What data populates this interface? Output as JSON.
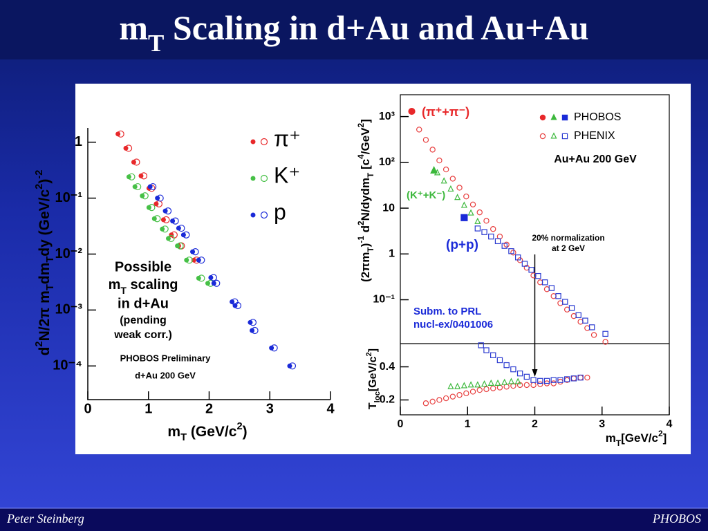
{
  "slide": {
    "title": [
      {
        "t": "m"
      },
      {
        "sub": "T"
      },
      {
        "t": " Scaling in d+Au and Au+Au"
      }
    ],
    "footer_left": "Peter Steinberg",
    "footer_right": "PHOBOS"
  },
  "chart_data": [
    {
      "type": "scatter",
      "log_y": true,
      "xlim": [
        0,
        4
      ],
      "ylim": [
        2.5e-05,
        1.8
      ],
      "xticks": [
        0,
        1,
        2,
        3,
        4
      ],
      "yticks": [
        1,
        {
          "value": 0.1,
          "label": "10⁻¹"
        },
        {
          "value": 0.01,
          "label": "10⁻²"
        },
        {
          "value": 0.001,
          "label": "10⁻³"
        },
        {
          "value": 0.0001,
          "label": "10⁻⁴"
        }
      ],
      "xlabel": [
        {
          "t": "m"
        },
        {
          "sub": "T"
        },
        {
          "t": " (GeV/c"
        },
        {
          "sup": "2"
        },
        {
          "t": ")"
        }
      ],
      "ylabel": [
        {
          "t": "d"
        },
        {
          "sup": "2"
        },
        {
          "t": "N/2π m"
        },
        {
          "sub": "T"
        },
        {
          "t": "dm"
        },
        {
          "sub": "T"
        },
        {
          "t": "dy (GeV/c"
        },
        {
          "sup": "2"
        },
        {
          "t": ")"
        },
        {
          "sup": "-2"
        }
      ],
      "annotations": [
        "Possible",
        [
          {
            "t": "m"
          },
          {
            "sub": "T"
          },
          {
            "t": " scaling"
          }
        ],
        "in d+Au",
        "(pending",
        "weak corr.)",
        "PHOBOS Preliminary",
        "d+Au 200 GeV"
      ],
      "series": [
        {
          "name": "π⁺",
          "color": "#e8282a",
          "marker": "circle",
          "x": [
            0.52,
            0.65,
            0.78,
            0.9,
            1.03,
            1.15,
            1.27,
            1.4,
            1.52,
            1.77
          ],
          "values": [
            1.4,
            0.78,
            0.44,
            0.25,
            0.15,
            0.079,
            0.041,
            0.022,
            0.014,
            0.0078
          ]
        },
        {
          "name": "K⁺",
          "color": "#46c046",
          "marker": "circle",
          "x": [
            0.7,
            0.8,
            0.92,
            1.03,
            1.12,
            1.25,
            1.35,
            1.5,
            1.65,
            1.85,
            2.0
          ],
          "values": [
            0.24,
            0.16,
            0.11,
            0.068,
            0.043,
            0.028,
            0.019,
            0.014,
            0.0078,
            0.0037,
            0.003
          ]
        },
        {
          "name": "p",
          "color": "#1a2ad8",
          "marker": "circle",
          "x": [
            1.05,
            1.17,
            1.3,
            1.42,
            1.52,
            1.6,
            1.75,
            1.85,
            2.05,
            2.1,
            2.4,
            2.45,
            2.7,
            2.73,
            3.05,
            3.35
          ],
          "values": [
            0.16,
            0.1,
            0.059,
            0.039,
            0.029,
            0.022,
            0.011,
            0.0078,
            0.0038,
            0.003,
            0.0014,
            0.0012,
            0.0006,
            0.00043,
            0.00021,
            0.0001
          ]
        }
      ]
    },
    {
      "type": "scatter",
      "log_y": true,
      "xlim": [
        0,
        4
      ],
      "ylim": [
        0.011,
        3000
      ],
      "yticks": [
        {
          "value": 1000,
          "label": "10³"
        },
        {
          "value": 100,
          "label": "10²"
        },
        10,
        1,
        {
          "value": 0.1,
          "label": "10⁻¹"
        }
      ],
      "ylabel": [
        {
          "t": "(2πm"
        },
        {
          "sub": "T"
        },
        {
          "t": ")"
        },
        {
          "sup": "-1"
        },
        {
          "t": " d"
        },
        {
          "sup": "2"
        },
        {
          "t": "N/dydm"
        },
        {
          "sub": "T"
        },
        {
          "t": " [c"
        },
        {
          "sup": "4"
        },
        {
          "t": "/GeV"
        },
        {
          "sup": "2"
        },
        {
          "t": "]"
        }
      ],
      "annotations": [
        "Au+Au 200 GeV",
        "20% normalization",
        "at 2 GeV",
        "Subm. to PRL",
        "nucl-ex/0401006"
      ],
      "arrow_x": 2,
      "groups": [
        {
          "name": "PHOBOS",
          "fill": true,
          "series": [
            {
              "name": "(π⁺+π⁻)",
              "color": "#e8282a",
              "marker": "circle",
              "x": [
                0.17
              ],
              "values": [
                1300
              ]
            },
            {
              "name": "(K⁺+K⁻)",
              "color": "#3cb83c",
              "marker": "triangle",
              "x": [
                0.5
              ],
              "values": [
                66
              ]
            },
            {
              "name": "(p+p)",
              "color": "#1a2ad8",
              "marker": "square",
              "x": [
                0.95
              ],
              "values": [
                6.2
              ]
            }
          ]
        },
        {
          "name": "PHENIX",
          "fill": false,
          "series": [
            {
              "color": "#e84040",
              "marker": "circle",
              "x": [
                0.28,
                0.38,
                0.48,
                0.58,
                0.68,
                0.78,
                0.88,
                0.98,
                1.08,
                1.18,
                1.28,
                1.38,
                1.48,
                1.58,
                1.68,
                1.78,
                1.88,
                1.98,
                2.08,
                2.18,
                2.28,
                2.38,
                2.48,
                2.58,
                2.68,
                2.78,
                2.88,
                3.05
              ],
              "values": [
                520,
                310,
                190,
                110,
                70,
                44,
                28,
                18,
                12,
                8.1,
                5.3,
                3.5,
                2.4,
                1.6,
                1.07,
                0.73,
                0.5,
                0.34,
                0.24,
                0.17,
                0.12,
                0.084,
                0.061,
                0.044,
                0.033,
                0.024,
                0.017,
                0.012
              ]
            },
            {
              "color": "#3cb83c",
              "marker": "triangle",
              "x": [
                0.55,
                0.65,
                0.75,
                0.85,
                0.95,
                1.05,
                1.15
              ],
              "values": [
                59,
                39,
                26,
                17,
                11.5,
                7.8,
                5.1
              ]
            },
            {
              "color": "#2a3ad0",
              "marker": "square",
              "x": [
                1.15,
                1.25,
                1.35,
                1.45,
                1.55,
                1.65,
                1.75,
                1.85,
                1.95,
                2.05,
                2.15,
                2.25,
                2.35,
                2.45,
                2.55,
                2.65,
                2.75,
                2.85,
                3.05
              ],
              "values": [
                3.6,
                3.0,
                2.4,
                1.9,
                1.5,
                1.15,
                0.84,
                0.61,
                0.45,
                0.33,
                0.24,
                0.18,
                0.12,
                0.09,
                0.066,
                0.046,
                0.035,
                0.025,
                0.018
              ]
            }
          ]
        }
      ]
    },
    {
      "type": "scatter",
      "xlim": [
        0,
        4
      ],
      "ylim": [
        0.11,
        0.54
      ],
      "xticks": [
        0,
        1,
        2,
        3,
        4
      ],
      "yticks": [
        0.2,
        0.4
      ],
      "xlabel": [
        {
          "t": "m"
        },
        {
          "sub": "T"
        },
        {
          "t": "[GeV/c"
        },
        {
          "sup": "2"
        },
        {
          "t": "]"
        }
      ],
      "ylabel": [
        {
          "t": "T"
        },
        {
          "sub": "loc"
        },
        {
          "t": "[GeV/c"
        },
        {
          "sup": "2"
        },
        {
          "t": "]"
        }
      ],
      "series": [
        {
          "color": "#e84040",
          "marker": "circle",
          "x": [
            0.38,
            0.48,
            0.58,
            0.68,
            0.78,
            0.88,
            0.98,
            1.08,
            1.18,
            1.28,
            1.38,
            1.48,
            1.58,
            1.68,
            1.78,
            1.88,
            1.98,
            2.08,
            2.18,
            2.28,
            2.38,
            2.48,
            2.58,
            2.68,
            2.78
          ],
          "values": [
            0.18,
            0.19,
            0.2,
            0.21,
            0.22,
            0.23,
            0.24,
            0.25,
            0.26,
            0.265,
            0.27,
            0.275,
            0.28,
            0.285,
            0.29,
            0.29,
            0.29,
            0.295,
            0.3,
            0.3,
            0.31,
            0.32,
            0.33,
            0.335,
            0.335
          ]
        },
        {
          "color": "#3cb83c",
          "marker": "triangle",
          "x": [
            0.75,
            0.85,
            0.95,
            1.05,
            1.15,
            1.25,
            1.35,
            1.45,
            1.55,
            1.65,
            1.75
          ],
          "values": [
            0.28,
            0.28,
            0.285,
            0.29,
            0.29,
            0.295,
            0.3,
            0.3,
            0.305,
            0.31,
            0.31
          ]
        },
        {
          "color": "#2a3ad0",
          "marker": "square",
          "x": [
            1.2,
            1.28,
            1.38,
            1.48,
            1.58,
            1.68,
            1.78,
            1.88,
            1.98,
            2.08,
            2.18,
            2.28,
            2.38,
            2.48,
            2.58,
            2.68
          ],
          "values": [
            0.53,
            0.5,
            0.47,
            0.44,
            0.41,
            0.385,
            0.36,
            0.34,
            0.32,
            0.315,
            0.315,
            0.32,
            0.32,
            0.325,
            0.33,
            0.335
          ]
        }
      ]
    }
  ]
}
